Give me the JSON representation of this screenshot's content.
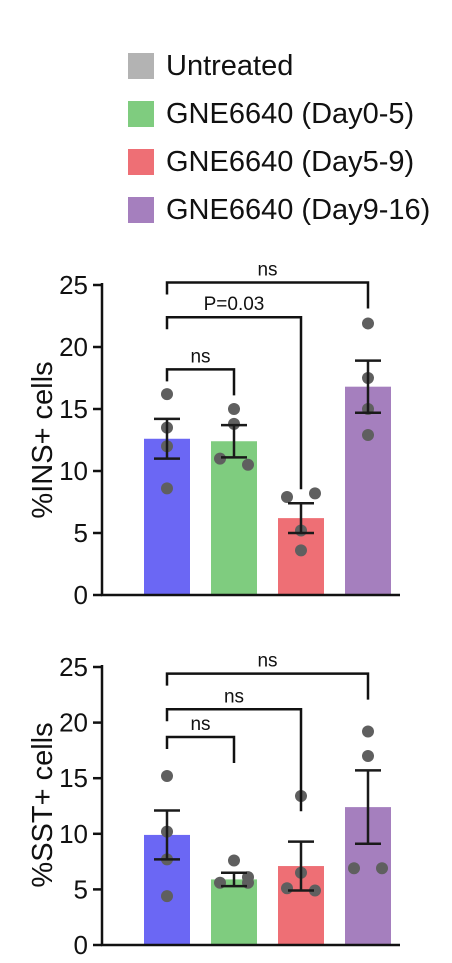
{
  "legend": [
    {
      "label": "Untreated",
      "color": "#b3b3b3"
    },
    {
      "label": "GNE6640 (Day0-5)",
      "color": "#7fcc7f"
    },
    {
      "label": "GNE6640 (Day5-9)",
      "color": "#ee6f75"
    },
    {
      "label": "GNE6640 (Day9-16)",
      "color": "#a57fbe"
    }
  ],
  "chart_data": [
    {
      "type": "bar",
      "ylabel": "%INS+ cells",
      "ylim": [
        0,
        25
      ],
      "yticks": [
        0,
        5,
        10,
        15,
        20,
        25
      ],
      "values": [
        12.6,
        12.4,
        6.2,
        16.8
      ],
      "errors": [
        1.6,
        1.3,
        1.2,
        2.1
      ],
      "bar_colors": [
        "#6b67f4",
        "#7fcc7f",
        "#ee6f75",
        "#a57fbe"
      ],
      "points": [
        [
          16.2,
          13.5,
          12.0,
          8.6
        ],
        [
          15.0,
          13.8,
          11.0,
          10.5
        ],
        [
          7.9,
          8.2,
          5.2,
          3.6
        ],
        [
          21.9,
          17.5,
          15.0,
          12.9
        ]
      ],
      "comparisons": [
        {
          "from": 0,
          "to": 1,
          "label": "ns",
          "y": 18.2
        },
        {
          "from": 0,
          "to": 2,
          "label": "P=0.03",
          "y": 22.4
        },
        {
          "from": 0,
          "to": 3,
          "label": "ns",
          "y": 25.2
        }
      ]
    },
    {
      "type": "bar",
      "ylabel": "%SST+ cells",
      "ylim": [
        0,
        25
      ],
      "yticks": [
        0,
        5,
        10,
        15,
        20,
        25
      ],
      "values": [
        9.9,
        5.9,
        7.1,
        12.4
      ],
      "errors": [
        2.2,
        0.6,
        2.2,
        3.3
      ],
      "bar_colors": [
        "#6b67f4",
        "#7fcc7f",
        "#ee6f75",
        "#a57fbe"
      ],
      "points": [
        [
          15.2,
          10.2,
          7.7,
          4.4
        ],
        [
          7.6,
          6.1,
          5.6,
          5.6
        ],
        [
          13.4,
          6.5,
          5.1,
          4.9
        ],
        [
          19.2,
          17.0,
          6.9,
          6.9
        ]
      ],
      "comparisons": [
        {
          "from": 0,
          "to": 1,
          "label": "ns",
          "y": 18.7
        },
        {
          "from": 0,
          "to": 2,
          "label": "ns",
          "y": 21.2
        },
        {
          "from": 0,
          "to": 3,
          "label": "ns",
          "y": 24.4
        }
      ]
    }
  ]
}
